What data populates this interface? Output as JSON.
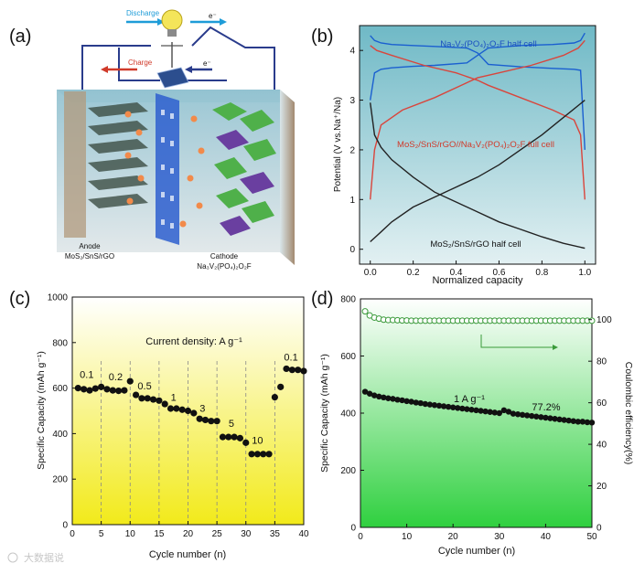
{
  "panels": {
    "a": "(a)",
    "b": "(b)",
    "c": "(c)",
    "d": "(d)"
  },
  "schematic": {
    "discharge": "Discharge",
    "charge": "Charge",
    "electron": "e⁻",
    "anode_title": "Anode",
    "anode_formula": "MoS₂/SnS/rGO",
    "cathode_title": "Cathode",
    "cathode_formula": "Na₃V₂(PO₄)₂O₂F"
  },
  "watermark": "大数据说",
  "colors": {
    "half_cell_blue": "#1a5fd0",
    "full_cell_red": "#d9453c",
    "anode_black": "#222222",
    "panel_c_grad_top": "#ffffff",
    "panel_c_grad_bottom": "#f2ea1a",
    "panel_d_grad_top": "#ffffff",
    "panel_d_grad_bottom": "#2fd03f",
    "ce_green": "#3a9a3a"
  },
  "chart_data": [
    {
      "id": "b",
      "type": "line",
      "xlabel": "Normalized capacity",
      "ylabel": "Potential (V vs.Na⁺/Na)",
      "xlim": [
        -0.05,
        1.05
      ],
      "ylim": [
        -0.3,
        4.5
      ],
      "xticks": [
        "0.0",
        "0.2",
        "0.4",
        "0.6",
        "0.8",
        "1.0"
      ],
      "xtick_values": [
        0,
        0.2,
        0.4,
        0.6,
        0.8,
        1.0
      ],
      "yticks": [
        "0",
        "1",
        "2",
        "3",
        "4"
      ],
      "ytick_values": [
        0,
        1,
        2,
        3,
        4
      ],
      "annotations": [
        "Na₃V₂(PO₄)₂O₂F half cell",
        "MoS₂/SnS/rGO//Na₃V₂(PO₄)₂O₂F full cell",
        "MoS₂/SnS/rGO half cell"
      ],
      "series": [
        {
          "name": "Na3V2(PO4)2O2F half cell charge",
          "color": "#1a5fd0",
          "x": [
            0,
            0.02,
            0.05,
            0.1,
            0.2,
            0.3,
            0.45,
            0.5,
            0.55,
            0.7,
            0.85,
            0.95,
            0.98,
            1.0
          ],
          "y": [
            3.0,
            3.55,
            3.62,
            3.65,
            3.68,
            3.7,
            3.75,
            3.9,
            4.05,
            4.1,
            4.12,
            4.15,
            4.2,
            4.35
          ]
        },
        {
          "name": "Na3V2(PO4)2O2F half cell discharge",
          "color": "#1a5fd0",
          "x": [
            1.0,
            0.98,
            0.95,
            0.85,
            0.7,
            0.55,
            0.5,
            0.45,
            0.3,
            0.2,
            0.1,
            0.05,
            0.02,
            0
          ],
          "y": [
            2.0,
            3.6,
            3.62,
            3.64,
            3.67,
            3.72,
            3.95,
            4.05,
            4.08,
            4.1,
            4.12,
            4.15,
            4.2,
            4.3
          ]
        },
        {
          "name": "Full cell charge",
          "color": "#d9453c",
          "x": [
            0,
            0.02,
            0.05,
            0.15,
            0.3,
            0.45,
            0.5,
            0.6,
            0.75,
            0.9,
            0.97,
            1.0
          ],
          "y": [
            1.0,
            2.0,
            2.5,
            2.8,
            3.05,
            3.35,
            3.45,
            3.55,
            3.7,
            3.9,
            4.05,
            4.2
          ]
        },
        {
          "name": "Full cell discharge",
          "color": "#d9453c",
          "x": [
            1.0,
            0.98,
            0.95,
            0.85,
            0.7,
            0.55,
            0.5,
            0.4,
            0.25,
            0.1,
            0.03,
            0
          ],
          "y": [
            1.0,
            2.3,
            2.6,
            2.8,
            3.05,
            3.3,
            3.4,
            3.55,
            3.7,
            3.9,
            4.0,
            4.1
          ]
        },
        {
          "name": "MoS2/SnS/rGO half cell discharge",
          "color": "#222222",
          "x": [
            0,
            0.02,
            0.05,
            0.1,
            0.2,
            0.3,
            0.4,
            0.5,
            0.6,
            0.7,
            0.8,
            0.9,
            1.0
          ],
          "y": [
            2.95,
            2.3,
            2.05,
            1.8,
            1.45,
            1.15,
            0.95,
            0.75,
            0.55,
            0.4,
            0.25,
            0.12,
            0.02
          ]
        },
        {
          "name": "MoS2/SnS/rGO half cell charge",
          "color": "#222222",
          "x": [
            0,
            0.05,
            0.1,
            0.2,
            0.3,
            0.4,
            0.5,
            0.6,
            0.7,
            0.8,
            0.9,
            1.0
          ],
          "y": [
            0.15,
            0.35,
            0.55,
            0.85,
            1.05,
            1.25,
            1.45,
            1.7,
            2.0,
            2.3,
            2.65,
            3.0
          ]
        }
      ]
    },
    {
      "id": "c",
      "type": "scatter",
      "xlabel": "Cycle number (n)",
      "ylabel": "Specific Capacity (mAh g⁻¹)",
      "xlim": [
        0,
        40
      ],
      "ylim": [
        0,
        1000
      ],
      "xticks": [
        "0",
        "5",
        "10",
        "15",
        "20",
        "25",
        "30",
        "35",
        "40"
      ],
      "xtick_values": [
        0,
        5,
        10,
        15,
        20,
        25,
        30,
        35,
        40
      ],
      "yticks": [
        "0",
        "200",
        "400",
        "600",
        "800",
        "1000"
      ],
      "ytick_values": [
        0,
        200,
        400,
        600,
        800,
        1000
      ],
      "dividers": [
        5,
        10,
        15,
        20,
        25,
        30,
        35
      ],
      "annotation": "Current density:  A g⁻¹",
      "rate_labels": [
        {
          "text": "0.1",
          "x": 2.5,
          "y": 645
        },
        {
          "text": "0.2",
          "x": 7.5,
          "y": 635
        },
        {
          "text": "0.5",
          "x": 12.5,
          "y": 595
        },
        {
          "text": "1",
          "x": 17.5,
          "y": 545
        },
        {
          "text": "3",
          "x": 22.5,
          "y": 495
        },
        {
          "text": "5",
          "x": 27.5,
          "y": 430
        },
        {
          "text": "10",
          "x": 32.0,
          "y": 355
        },
        {
          "text": "0.1",
          "x": 37.8,
          "y": 720
        }
      ],
      "x": [
        1,
        2,
        3,
        4,
        5,
        6,
        7,
        8,
        9,
        10,
        11,
        12,
        13,
        14,
        15,
        16,
        17,
        18,
        19,
        20,
        21,
        22,
        23,
        24,
        25,
        26,
        27,
        28,
        29,
        30,
        31,
        32,
        33,
        34,
        35,
        36,
        37,
        38,
        39,
        40
      ],
      "values": [
        600,
        595,
        590,
        598,
        605,
        595,
        590,
        588,
        590,
        630,
        570,
        555,
        555,
        550,
        545,
        530,
        510,
        510,
        505,
        500,
        490,
        465,
        460,
        455,
        455,
        385,
        385,
        385,
        380,
        360,
        310,
        310,
        310,
        310,
        560,
        605,
        685,
        680,
        680,
        675
      ]
    },
    {
      "id": "d",
      "type": "scatter",
      "xlabel": "Cycle number (n)",
      "ylabel": "Specific Capacity (mAh g⁻¹)",
      "y2label": "Coulombic efficiency(%)",
      "xlim": [
        0,
        50
      ],
      "ylim": [
        0,
        800
      ],
      "y2lim": [
        0,
        110
      ],
      "xticks": [
        "0",
        "10",
        "20",
        "30",
        "40",
        "50"
      ],
      "xtick_values": [
        0,
        10,
        20,
        30,
        40,
        50
      ],
      "yticks": [
        "0",
        "200",
        "400",
        "600",
        "800"
      ],
      "ytick_values": [
        0,
        200,
        400,
        600,
        800
      ],
      "y2ticks": [
        "0",
        "20",
        "40",
        "60",
        "80",
        "100"
      ],
      "y2tick_values": [
        0,
        20,
        40,
        60,
        80,
        100
      ],
      "annotation_rate": "1 A g⁻¹",
      "annotation_retention": "77.2%",
      "series": [
        {
          "name": "Specific capacity",
          "color": "#111111",
          "x": [
            1,
            2,
            3,
            4,
            5,
            6,
            7,
            8,
            9,
            10,
            11,
            12,
            13,
            14,
            15,
            16,
            17,
            18,
            19,
            20,
            21,
            22,
            23,
            24,
            25,
            26,
            27,
            28,
            29,
            30,
            31,
            32,
            33,
            34,
            35,
            36,
            37,
            38,
            39,
            40,
            41,
            42,
            43,
            44,
            45,
            46,
            47,
            48,
            49,
            50
          ],
          "values": [
            475,
            468,
            462,
            458,
            455,
            452,
            450,
            447,
            445,
            442,
            440,
            437,
            435,
            432,
            430,
            428,
            426,
            424,
            422,
            420,
            418,
            416,
            414,
            412,
            410,
            408,
            406,
            404,
            402,
            400,
            410,
            405,
            398,
            396,
            394,
            392,
            390,
            388,
            386,
            384,
            382,
            380,
            378,
            376,
            374,
            372,
            370,
            370,
            368,
            367
          ]
        },
        {
          "name": "Coulombic efficiency",
          "color": "#3a9a3a",
          "x": [
            1,
            2,
            3,
            4,
            5,
            6,
            7,
            8,
            9,
            10,
            11,
            12,
            13,
            14,
            15,
            16,
            17,
            18,
            19,
            20,
            21,
            22,
            23,
            24,
            25,
            26,
            27,
            28,
            29,
            30,
            31,
            32,
            33,
            34,
            35,
            36,
            37,
            38,
            39,
            40,
            41,
            42,
            43,
            44,
            45,
            46,
            47,
            48,
            49,
            50
          ],
          "values": [
            104,
            102,
            101,
            100.5,
            100,
            99.8,
            99.8,
            99.7,
            99.6,
            99.6,
            99.5,
            99.5,
            99.5,
            99.5,
            99.5,
            99.5,
            99.5,
            99.5,
            99.5,
            99.5,
            99.5,
            99.5,
            99.5,
            99.5,
            99.5,
            99.5,
            99.5,
            99.5,
            99.5,
            99.5,
            99.5,
            99.5,
            99.5,
            99.5,
            99.5,
            99.5,
            99.5,
            99.5,
            99.5,
            99.5,
            99.5,
            99.5,
            99.5,
            99.5,
            99.5,
            99.5,
            99.5,
            99.5,
            99.5,
            99.5
          ]
        }
      ]
    }
  ]
}
